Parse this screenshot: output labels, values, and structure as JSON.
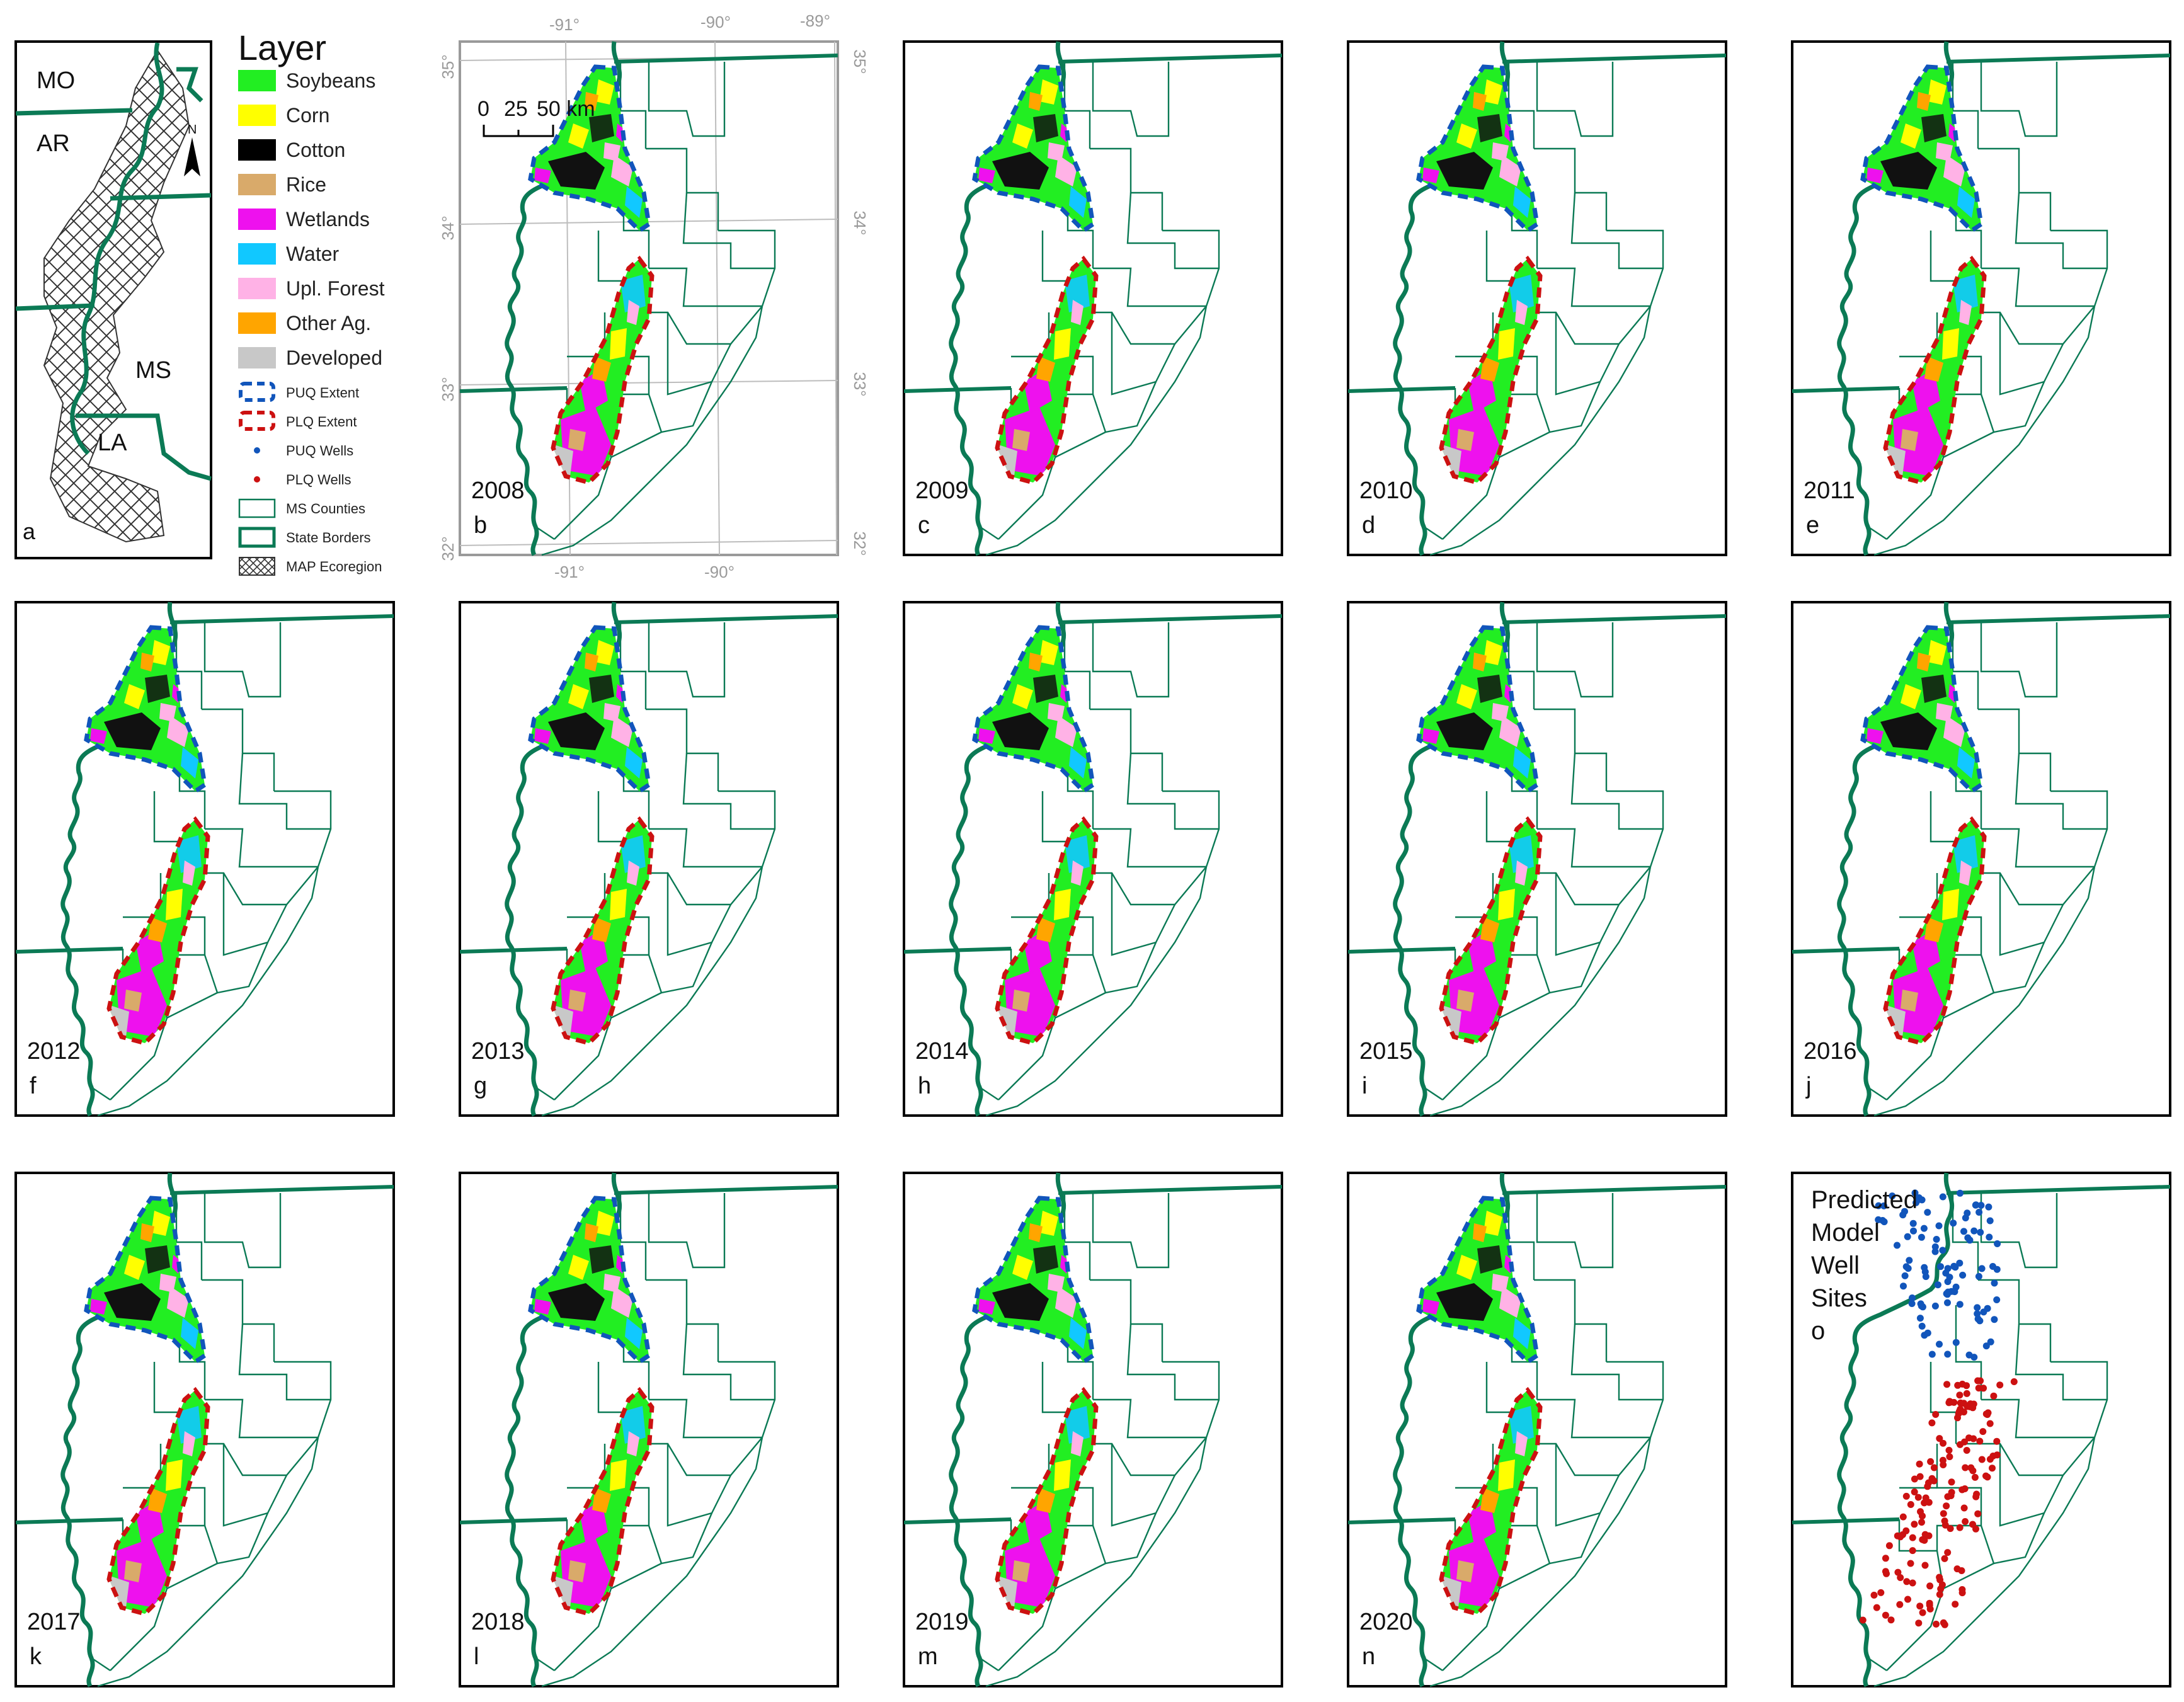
{
  "inset": {
    "panel_letter": "a",
    "state_labels": [
      "MO",
      "AR",
      "MS",
      "LA"
    ]
  },
  "legend": {
    "title": "Layer",
    "items": [
      {
        "label": "Soybeans",
        "color": "#22ee22",
        "kind": "fill"
      },
      {
        "label": "Corn",
        "color": "#ffff00",
        "kind": "fill"
      },
      {
        "label": "Cotton",
        "color": "#000000",
        "kind": "fill"
      },
      {
        "label": "Rice",
        "color": "#d9aa6a",
        "kind": "fill"
      },
      {
        "label": "Wetlands",
        "color": "#ee11ee",
        "kind": "fill"
      },
      {
        "label": "Water",
        "color": "#11c8ff",
        "kind": "fill"
      },
      {
        "label": "Upl. Forest",
        "color": "#ffb2e6",
        "kind": "fill"
      },
      {
        "label": "Other Ag.",
        "color": "#ffa500",
        "kind": "fill"
      },
      {
        "label": "Developed",
        "color": "#c8c8c8",
        "kind": "fill"
      },
      {
        "label": "PUQ Extent",
        "color": "#1155bb",
        "kind": "dash"
      },
      {
        "label": "PLQ Extent",
        "color": "#cc1111",
        "kind": "dash"
      },
      {
        "label": "PUQ Wells",
        "color": "#1155bb",
        "kind": "dot"
      },
      {
        "label": "PLQ Wells",
        "color": "#cc1111",
        "kind": "dot"
      },
      {
        "label": "MS Counties",
        "color": "#0b7a55",
        "kind": "thin-box"
      },
      {
        "label": "State Borders",
        "color": "#0b7a55",
        "kind": "thick-box"
      },
      {
        "label": "MAP Ecoregion",
        "color": "#333333",
        "kind": "hatch"
      }
    ]
  },
  "colors": {
    "state_border": "#0b7a55",
    "county": "#0b7a55",
    "grid": "#bdbdbd",
    "puq": "#1155bb",
    "plq": "#cc1111"
  },
  "scalebar": {
    "ticks": [
      "0",
      "25",
      "50 km"
    ]
  },
  "north_arrow": "N",
  "graticule": {
    "top": [
      "-91°",
      "-90°",
      "-89°"
    ],
    "bottom": [
      "-91°",
      "-90°"
    ],
    "left": [
      "35°",
      "34°",
      "33°",
      "32°"
    ],
    "right": [
      "35°",
      "34°",
      "33°",
      "32°"
    ]
  },
  "panels": [
    {
      "year": "2008",
      "letter": "b"
    },
    {
      "year": "2009",
      "letter": "c"
    },
    {
      "year": "2010",
      "letter": "d"
    },
    {
      "year": "2011",
      "letter": "e"
    },
    {
      "year": "2012",
      "letter": "f"
    },
    {
      "year": "2013",
      "letter": "g"
    },
    {
      "year": "2014",
      "letter": "h"
    },
    {
      "year": "2015",
      "letter": "i"
    },
    {
      "year": "2016",
      "letter": "j"
    },
    {
      "year": "2017",
      "letter": "k"
    },
    {
      "year": "2018",
      "letter": "l"
    },
    {
      "year": "2019",
      "letter": "m"
    },
    {
      "year": "2020",
      "letter": "n"
    }
  ],
  "wells_panel": {
    "title_lines": [
      "Predicted",
      "Model",
      "Well",
      "Sites",
      "o"
    ]
  }
}
